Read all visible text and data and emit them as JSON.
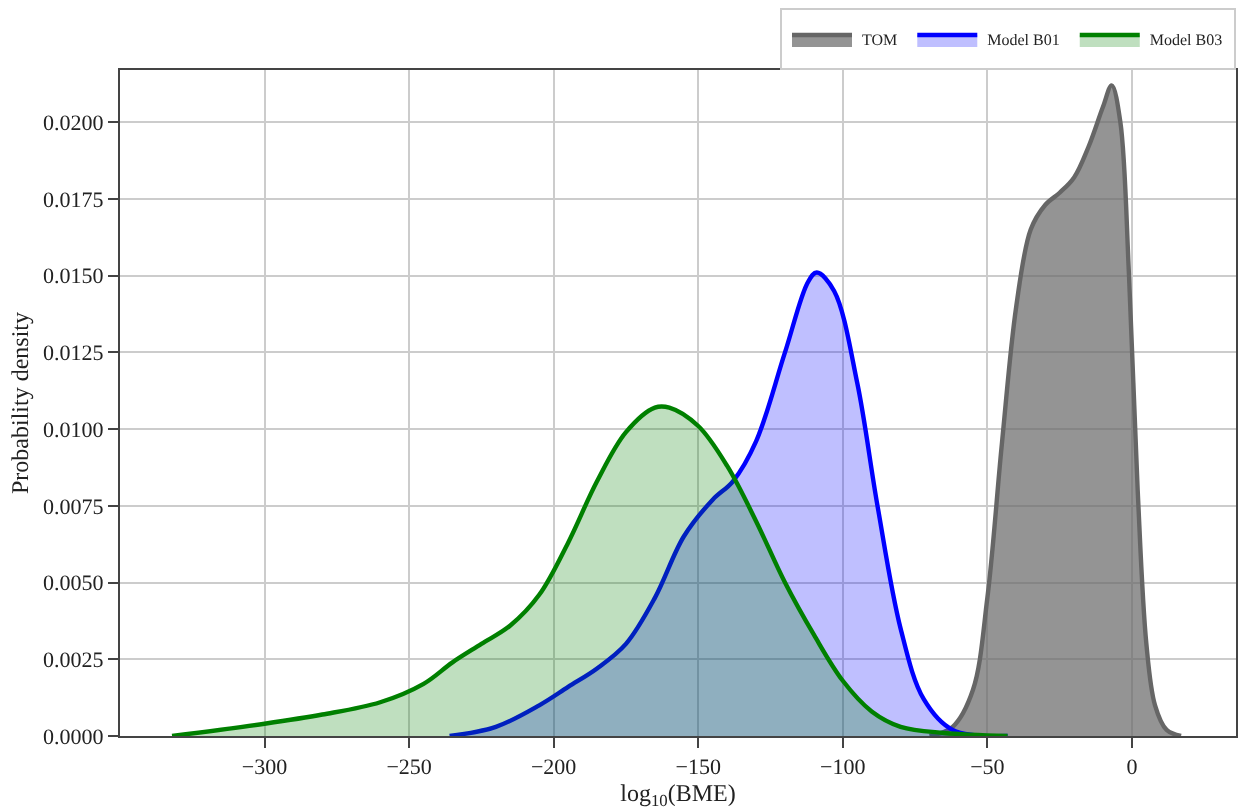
{
  "chart_data": {
    "type": "area",
    "xlabel": "log$_{10}$(BME)",
    "ylabel": "Probability density",
    "xlim": [
      -350,
      36
    ],
    "ylim": [
      0,
      0.0217
    ],
    "xticks": [
      -300,
      -250,
      -200,
      -150,
      -100,
      -50,
      0
    ],
    "yticks": [
      {
        "value": 0,
        "label": "0.0000"
      },
      {
        "value": 0.0025,
        "label": "0.0025"
      },
      {
        "value": 0.005,
        "label": "0.0050"
      },
      {
        "value": 0.0075,
        "label": "0.0075"
      },
      {
        "value": 0.01,
        "label": "0.0100"
      },
      {
        "value": 0.0125,
        "label": "0.0125"
      },
      {
        "value": 0.015,
        "label": "0.0150"
      },
      {
        "value": 0.0175,
        "label": "0.0175"
      },
      {
        "value": 0.02,
        "label": "0.0200"
      }
    ],
    "grid": true,
    "legend": "top right",
    "series": [
      {
        "name": "TOM",
        "color": "#666666",
        "x": [
          -70,
          -62,
          -55,
          -50,
          -45,
          -40,
          -35,
          -30,
          -25,
          -20,
          -15,
          -10,
          -7,
          -4,
          -1,
          2,
          5,
          8,
          12,
          17
        ],
        "values": [
          0,
          0.0003,
          0.0015,
          0.0045,
          0.0095,
          0.014,
          0.0165,
          0.0173,
          0.0177,
          0.0182,
          0.0192,
          0.0205,
          0.0212,
          0.02,
          0.015,
          0.008,
          0.003,
          0.001,
          0.0002,
          0
        ]
      },
      {
        "name": "Model B01",
        "color": "#0000ff",
        "x": [
          -236,
          -220,
          -205,
          -195,
          -185,
          -175,
          -165,
          -155,
          -145,
          -138,
          -130,
          -120,
          -112,
          -109,
          -103,
          -95,
          -88,
          -80,
          -72,
          -62,
          -43
        ],
        "values": [
          0,
          0.0003,
          0.001,
          0.0016,
          0.0022,
          0.003,
          0.0045,
          0.0065,
          0.0077,
          0.0083,
          0.0096,
          0.0125,
          0.0148,
          0.0151,
          0.0145,
          0.0115,
          0.0075,
          0.0035,
          0.0012,
          0.0002,
          0
        ]
      },
      {
        "name": "Model B03",
        "color": "#008000",
        "x": [
          -332,
          -300,
          -280,
          -260,
          -245,
          -235,
          -225,
          -215,
          -205,
          -195,
          -185,
          -175,
          -165,
          -160,
          -150,
          -140,
          -130,
          -120,
          -110,
          -100,
          -90,
          -80,
          -65,
          -43
        ],
        "values": [
          0,
          0.0004,
          0.0007,
          0.0011,
          0.0017,
          0.0024,
          0.003,
          0.0036,
          0.0046,
          0.0063,
          0.0083,
          0.0099,
          0.0107,
          0.0107,
          0.0101,
          0.0088,
          0.007,
          0.005,
          0.0033,
          0.0018,
          0.0008,
          0.0003,
          0.0001,
          0
        ]
      }
    ]
  }
}
